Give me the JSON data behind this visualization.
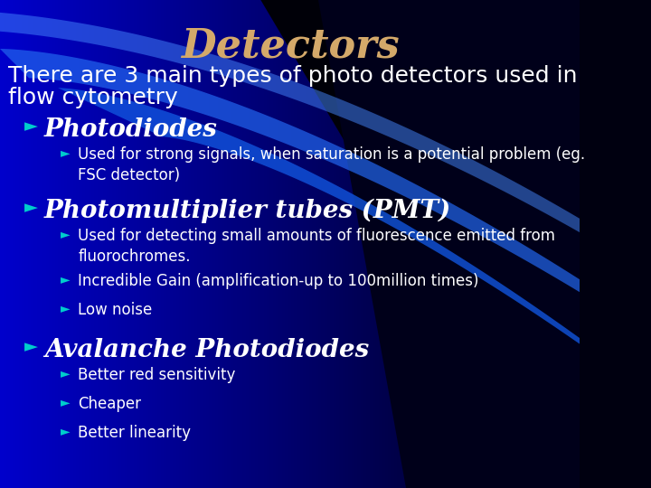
{
  "title": "Detectors",
  "title_color": "#D4A96A",
  "title_fontsize": 32,
  "bg_color_left": "#0000CC",
  "bg_color_right": "#000010",
  "text_color": "#FFFFFF",
  "intro_text_line1": "There are 3 main types of photo detectors used in",
  "intro_text_line2": "flow cytometry",
  "intro_fontsize": 18,
  "bullet_l1": "Ø",
  "bullet_l2": "Ø",
  "sections": [
    {
      "heading": "Photodiodes",
      "heading_fontsize": 20,
      "sub_bullets": [
        "Used for strong signals, when saturation is a potential problem (eg.\nFSC detector)"
      ],
      "sub_fontsize": 12
    },
    {
      "heading": "Photomultiplier tubes (PMT)",
      "heading_fontsize": 20,
      "sub_bullets": [
        "Used for detecting small amounts of fluorescence emitted from\nfluorochromes.",
        "Incredible Gain (amplification-up to 100million times)",
        "Low noise"
      ],
      "sub_fontsize": 12
    },
    {
      "heading": "Avalanche Photodiodes",
      "heading_fontsize": 20,
      "sub_bullets": [
        "Better red sensitivity",
        "Cheaper",
        "Better linearity"
      ],
      "sub_fontsize": 12
    }
  ]
}
